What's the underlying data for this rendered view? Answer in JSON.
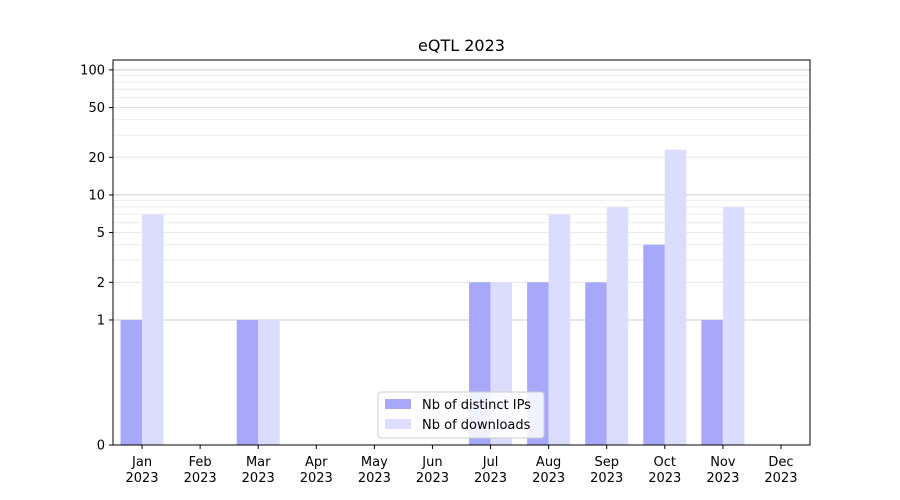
{
  "chart_data": {
    "type": "bar",
    "title": "eQTL 2023",
    "xlabel": "",
    "ylabel": "",
    "y_scale": "symlog",
    "ylim": [
      0,
      120
    ],
    "y_ticks": [
      {
        "value": 0,
        "label": "0"
      },
      {
        "value": 1,
        "label": "1"
      },
      {
        "value": 2,
        "label": "2"
      },
      {
        "value": 5,
        "label": "5"
      },
      {
        "value": 10,
        "label": "10"
      },
      {
        "value": 20,
        "label": "20"
      },
      {
        "value": 50,
        "label": "50"
      },
      {
        "value": 100,
        "label": "100"
      }
    ],
    "categories": [
      {
        "month": "Jan",
        "year": "2023"
      },
      {
        "month": "Feb",
        "year": "2023"
      },
      {
        "month": "Mar",
        "year": "2023"
      },
      {
        "month": "Apr",
        "year": "2023"
      },
      {
        "month": "May",
        "year": "2023"
      },
      {
        "month": "Jun",
        "year": "2023"
      },
      {
        "month": "Jul",
        "year": "2023"
      },
      {
        "month": "Aug",
        "year": "2023"
      },
      {
        "month": "Sep",
        "year": "2023"
      },
      {
        "month": "Oct",
        "year": "2023"
      },
      {
        "month": "Nov",
        "year": "2023"
      },
      {
        "month": "Dec",
        "year": "2023"
      }
    ],
    "series": [
      {
        "name": "Nb of distinct IPs",
        "color": "#a8a8fa",
        "values": [
          1,
          0,
          1,
          0,
          0,
          0,
          2,
          2,
          2,
          4,
          1,
          0
        ]
      },
      {
        "name": "Nb of downloads",
        "color": "#dcdcfc",
        "values": [
          7,
          0,
          1,
          0,
          0,
          0,
          2,
          7,
          8,
          23,
          8,
          0
        ]
      }
    ],
    "grid": true,
    "legend_position": "bottom-center"
  }
}
